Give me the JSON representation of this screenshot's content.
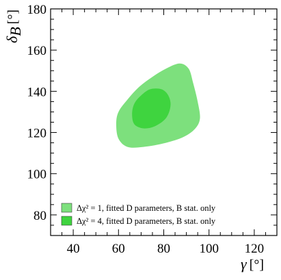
{
  "chart_data": {
    "type": "contour",
    "title": "",
    "xlabel_symbol": "γ",
    "xlabel_unit": "[°]",
    "ylabel_symbol": "δ",
    "ylabel_subscript": "B",
    "ylabel_unit": "[°]",
    "xlim": [
      30,
      130
    ],
    "ylim": [
      70,
      180
    ],
    "xticks": [
      40,
      60,
      80,
      100,
      120
    ],
    "yticks": [
      80,
      100,
      120,
      140,
      160,
      180
    ],
    "xtick_labels": [
      "40",
      "60",
      "80",
      "100",
      "120"
    ],
    "ytick_labels": [
      "80",
      "100",
      "120",
      "140",
      "160",
      "180"
    ],
    "legend_position": "bottom-left",
    "series": [
      {
        "name": "Δχ² = 1, fitted D parameters, B stat. only",
        "color": "#7de07d",
        "region": [
          [
            59,
            124
          ],
          [
            60,
            130
          ],
          [
            64,
            136
          ],
          [
            69,
            142
          ],
          [
            75,
            147
          ],
          [
            81,
            151
          ],
          [
            87,
            153.5
          ],
          [
            91,
            151
          ],
          [
            93,
            144
          ],
          [
            95,
            135
          ],
          [
            96,
            127
          ],
          [
            94,
            122
          ],
          [
            89,
            118
          ],
          [
            81,
            115
          ],
          [
            71,
            113
          ],
          [
            64,
            113
          ],
          [
            60,
            117
          ]
        ]
      },
      {
        "name": "Δχ² = 4, fitted D parameters, B stat. only",
        "color": "#3fd43f",
        "region": [
          [
            66,
            129
          ],
          [
            67,
            134
          ],
          [
            70,
            138
          ],
          [
            74,
            141
          ],
          [
            79,
            141
          ],
          [
            82,
            138
          ],
          [
            83,
            133
          ],
          [
            81,
            127
          ],
          [
            76,
            123
          ],
          [
            71,
            122
          ],
          [
            67,
            124
          ]
        ]
      }
    ]
  }
}
